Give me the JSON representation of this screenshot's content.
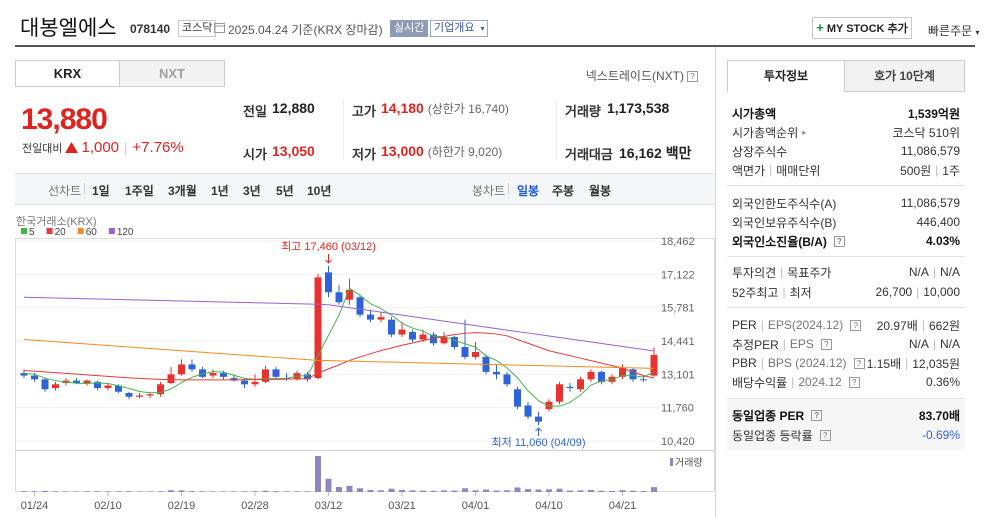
{
  "header": {
    "name": "대봉엘에스",
    "code": "078140",
    "market": "코스닥",
    "date": "2025.04.24 기준(KRX 장마감)",
    "realtime": "실시간",
    "overview": "기업개요",
    "my_stock": "MY STOCK 추가",
    "quick_order": "빠른주문"
  },
  "market_tabs": [
    "KRX",
    "NXT"
  ],
  "nxt_link": "넥스트레이드(NXT)",
  "price": {
    "current": "13,880",
    "change_label": "전일대비",
    "change": "1,000",
    "change_rate": "+7.76%"
  },
  "summary": {
    "prev_label": "전일",
    "prev": "12,880",
    "high_label": "고가",
    "high": "14,180",
    "upper_limit": "(상한가 16,740)",
    "volume_label": "거래량",
    "volume": "1,173,538",
    "open_label": "시가",
    "open": "13,050",
    "low_label": "저가",
    "low": "13,000",
    "lower_limit": "(하한가 9,020)",
    "amount_label": "거래대금",
    "amount": "16,162",
    "amount_unit": "백만"
  },
  "line_chart": {
    "label": "선차트",
    "periods": [
      "1일",
      "1주일",
      "3개월",
      "1년",
      "3년",
      "5년",
      "10년"
    ]
  },
  "candle_chart": {
    "label": "봉차트",
    "periods": [
      "일봉",
      "주봉",
      "월봉"
    ]
  },
  "chart_data": {
    "type": "candlestick",
    "source": "한국거래소(KRX)",
    "categories": [
      null,
      "01/24",
      null,
      null,
      null,
      null,
      null,
      null,
      "02/10",
      null,
      null,
      null,
      null,
      null,
      null,
      "02/19",
      null,
      null,
      null,
      null,
      null,
      null,
      "02/28",
      null,
      null,
      null,
      null,
      null,
      null,
      "03/12",
      null,
      null,
      null,
      null,
      null,
      null,
      "03/21",
      null,
      null,
      null,
      null,
      null,
      null,
      "04/01",
      null,
      null,
      null,
      null,
      null,
      null,
      "04/10",
      null,
      null,
      null,
      null,
      null,
      null,
      "04/21",
      null,
      null,
      null
    ],
    "open": [
      13150,
      13050,
      12900,
      12550,
      12750,
      12850,
      12750,
      12800,
      12550,
      12650,
      12350,
      12200,
      12250,
      12300,
      12750,
      13100,
      13500,
      13300,
      13050,
      13150,
      12950,
      12850,
      12700,
      12800,
      13300,
      12950,
      12900,
      13100,
      12950,
      17200,
      16400,
      16100,
      16200,
      15500,
      15300,
      15300,
      14700,
      14800,
      14500,
      14700,
      14350,
      14600,
      14200,
      13800,
      13800,
      13200,
      13100,
      12500,
      11850,
      11400,
      11700,
      12000,
      12600,
      12500,
      12900,
      13200,
      12800,
      13000,
      13300,
      12900,
      13050
    ],
    "high": [
      13300,
      13150,
      12950,
      12800,
      12950,
      12950,
      12900,
      12850,
      12750,
      12700,
      12400,
      12350,
      12400,
      12800,
      13400,
      13700,
      13700,
      13400,
      13300,
      13250,
      13100,
      12950,
      13100,
      13450,
      13400,
      13150,
      13250,
      13200,
      17150,
      17460,
      16700,
      16950,
      16300,
      15700,
      15600,
      15400,
      15200,
      14900,
      14900,
      14800,
      14800,
      14650,
      15300,
      14400,
      13900,
      13500,
      13200,
      12600,
      12000,
      11600,
      12100,
      12800,
      12750,
      13000,
      13300,
      13250,
      13100,
      13500,
      13350,
      13050,
      14180
    ],
    "low": [
      12950,
      12800,
      12400,
      12450,
      12650,
      12700,
      12650,
      12450,
      12450,
      12350,
      12100,
      12150,
      12150,
      12200,
      12700,
      13050,
      13200,
      12950,
      12950,
      12900,
      12800,
      12550,
      12600,
      12750,
      12900,
      12850,
      12850,
      12800,
      12900,
      16200,
      15900,
      15900,
      15400,
      15200,
      15200,
      14600,
      14600,
      14400,
      14400,
      14250,
      14300,
      14100,
      13700,
      13700,
      13100,
      12900,
      12600,
      11700,
      11300,
      11060,
      11600,
      11900,
      12400,
      12400,
      12800,
      12700,
      12700,
      12900,
      12800,
      12800,
      13000
    ],
    "close": [
      13050,
      12900,
      12500,
      12700,
      12850,
      12750,
      12850,
      12550,
      12650,
      12400,
      12200,
      12250,
      12300,
      12700,
      13100,
      13500,
      13300,
      13000,
      13150,
      13000,
      12850,
      12700,
      12800,
      13300,
      13000,
      12900,
      13150,
      12900,
      17000,
      16400,
      16000,
      16500,
      15500,
      15300,
      15400,
      14700,
      14900,
      14500,
      14700,
      14350,
      14600,
      14200,
      13800,
      14000,
      13200,
      13100,
      12700,
      11800,
      11400,
      11200,
      12000,
      12700,
      12550,
      12900,
      13200,
      12800,
      13000,
      13350,
      12900,
      12880,
      13880
    ],
    "up_color": "#e8322f",
    "down_color": "#2f64d6",
    "series": [
      {
        "name": "5",
        "color": "#43b649",
        "values": [
          13150,
          13100,
          12950,
          12850,
          12790,
          12740,
          12730,
          12750,
          12730,
          12640,
          12530,
          12410,
          12360,
          12370,
          12510,
          12770,
          12980,
          13120,
          13210,
          13190,
          13060,
          12940,
          12900,
          12930,
          12930,
          12940,
          13030,
          13050,
          13850,
          14670,
          15480,
          16560,
          16280,
          15940,
          15740,
          15480,
          15160,
          14960,
          14840,
          14630,
          14610,
          14470,
          14330,
          14190,
          13840,
          13660,
          13360,
          12960,
          12440,
          12040,
          11820,
          11820,
          11970,
          12270,
          12670,
          12830,
          12890,
          13050,
          13050,
          12990,
          13200
        ]
      },
      {
        "name": "20",
        "color": "#e63b3b",
        "values": [
          13250,
          13230,
          13200,
          13170,
          13140,
          13110,
          13080,
          13050,
          13020,
          12990,
          12960,
          12940,
          12920,
          12900,
          12890,
          12880,
          12880,
          12880,
          12880,
          12880,
          12880,
          12890,
          12890,
          12900,
          12900,
          12910,
          12920,
          12930,
          13140,
          13320,
          13480,
          13660,
          13800,
          13930,
          14060,
          14160,
          14270,
          14360,
          14460,
          14540,
          14620,
          14700,
          14750,
          14780,
          14760,
          14720,
          14650,
          14500,
          14350,
          14200,
          14050,
          13950,
          13850,
          13750,
          13650,
          13550,
          13450,
          13350,
          13200,
          13050,
          12950
        ]
      },
      {
        "name": "60",
        "color": "#f08c1e",
        "values": [
          14500,
          14470,
          14440,
          14410,
          14380,
          14350,
          14320,
          14290,
          14260,
          14230,
          14200,
          14170,
          14140,
          14110,
          14080,
          14050,
          14020,
          13990,
          13960,
          13930,
          13900,
          13870,
          13840,
          13810,
          13780,
          13750,
          13720,
          13690,
          13660,
          13650,
          13640,
          13630,
          13620,
          13610,
          13600,
          13590,
          13580,
          13570,
          13560,
          13550,
          13540,
          13530,
          13520,
          13510,
          13500,
          13490,
          13480,
          13470,
          13460,
          13450,
          13440,
          13430,
          13420,
          13410,
          13400,
          13390,
          13380,
          13370,
          13360,
          13350,
          13340
        ]
      },
      {
        "name": "120",
        "color": "#9b5fd2",
        "values": [
          16200,
          16190,
          16180,
          16170,
          16160,
          16150,
          16140,
          16130,
          16120,
          16110,
          16100,
          16090,
          16080,
          16070,
          16060,
          16050,
          16040,
          16030,
          16020,
          16010,
          16000,
          15990,
          15980,
          15970,
          15960,
          15950,
          15940,
          15930,
          15920,
          15900,
          15840,
          15780,
          15720,
          15660,
          15600,
          15540,
          15480,
          15420,
          15360,
          15300,
          15240,
          15180,
          15120,
          15060,
          15000,
          14940,
          14880,
          14820,
          14760,
          14700,
          14640,
          14580,
          14520,
          14460,
          14400,
          14340,
          14280,
          14220,
          14160,
          14100,
          14040
        ]
      }
    ],
    "volume_name": "거래량",
    "volume_color": "#8f87c4",
    "volume": [
      180000,
      150000,
      260000,
      140000,
      120000,
      110000,
      130000,
      160000,
      120000,
      140000,
      170000,
      110000,
      100000,
      150000,
      420000,
      380000,
      200000,
      150000,
      130000,
      120000,
      110000,
      140000,
      160000,
      300000,
      180000,
      120000,
      130000,
      150000,
      8700000,
      3200000,
      1200000,
      1500000,
      900000,
      500000,
      400000,
      800000,
      500000,
      400000,
      350000,
      300000,
      380000,
      350000,
      900000,
      400000,
      600000,
      350000,
      400000,
      1100000,
      700000,
      600000,
      650000,
      800000,
      350000,
      400000,
      500000,
      300000,
      250000,
      450000,
      300000,
      250000,
      1173538
    ],
    "ylim": [
      10058,
      18663
    ],
    "yticks": [
      {
        "value": 18462,
        "label": "18,462"
      },
      {
        "value": 17122,
        "label": "17,122"
      },
      {
        "value": 15781,
        "label": "15,781"
      },
      {
        "value": 14441,
        "label": "14,441"
      },
      {
        "value": 13101,
        "label": "13,101"
      },
      {
        "value": 11760,
        "label": "11,760"
      },
      {
        "value": 10420,
        "label": "10,420"
      }
    ],
    "grid": true,
    "high_label": "최고 17,460 (03/12)",
    "low_label": "최저 11,060 (04/09)"
  },
  "invest_info": {
    "tabs": [
      "투자정보",
      "호가 10단계"
    ],
    "rows": [
      {
        "label": [
          "시가총액"
        ],
        "value": [
          "1,539억원"
        ]
      },
      {
        "label": [
          "시가총액순위"
        ],
        "value": [
          "코스닥 510위"
        ]
      },
      {
        "label": [
          "상장주식수"
        ],
        "value": [
          "11,086,579"
        ]
      },
      {
        "label": [
          "액면가",
          "매매단위"
        ],
        "value": [
          "500원",
          "1주"
        ]
      },
      {
        "label": [
          "외국인한도주식수(A)"
        ],
        "value": [
          "11,086,579"
        ]
      },
      {
        "label": [
          "외국인보유주식수(B)"
        ],
        "value": [
          "446,400"
        ]
      },
      {
        "label": [
          "외국인소진율(B/A)"
        ],
        "value": [
          "4.03%"
        ]
      },
      {
        "label": [
          "투자의견",
          "목표주가"
        ],
        "value": [
          "N/A",
          "N/A"
        ]
      },
      {
        "label": [
          "52주최고",
          "최저"
        ],
        "value": [
          "26,700",
          "10,000"
        ]
      },
      {
        "label": [
          "PER",
          "EPS(2024.12)"
        ],
        "value": [
          "20.97배",
          "662원"
        ]
      },
      {
        "label": [
          "추정PER",
          "EPS"
        ],
        "value": [
          "N/A",
          "N/A"
        ]
      },
      {
        "label": [
          "PBR",
          "BPS (2024.12)"
        ],
        "value": [
          "1.15배",
          "12,035원"
        ]
      },
      {
        "label": [
          "배당수익률",
          "2024.12"
        ],
        "value": [
          "0.36%"
        ]
      },
      {
        "label": [
          "동일업종 PER"
        ],
        "value": [
          "83.70배"
        ]
      },
      {
        "label": [
          "동일업종 등락률"
        ],
        "value": [
          "-0.69%"
        ]
      }
    ]
  }
}
